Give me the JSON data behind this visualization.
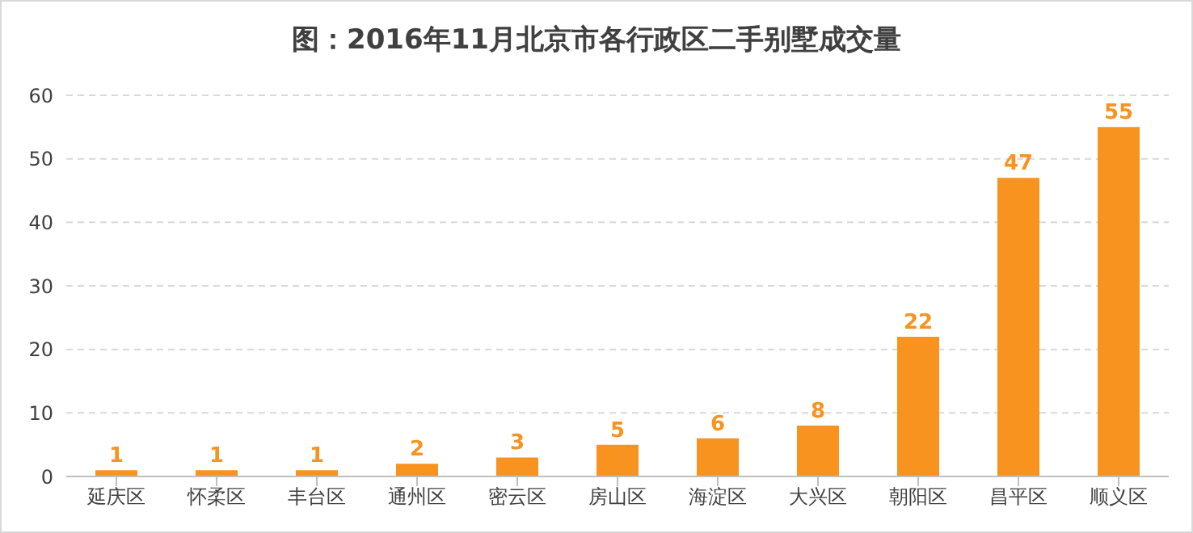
{
  "chart_data": {
    "type": "bar",
    "title": "图：2016年11月北京市各行政区二手别墅成交量",
    "categories": [
      "延庆区",
      "怀柔区",
      "丰台区",
      "通州区",
      "密云区",
      "房山区",
      "海淀区",
      "大兴区",
      "朝阳区",
      "昌平区",
      "顺义区"
    ],
    "values": [
      1,
      1,
      1,
      2,
      3,
      5,
      6,
      8,
      22,
      47,
      55
    ],
    "color": "#f7931e",
    "ylim": [
      0,
      60
    ],
    "yticks": [
      0,
      10,
      20,
      30,
      40,
      50,
      60
    ],
    "grid": "y",
    "data_labels": true
  }
}
